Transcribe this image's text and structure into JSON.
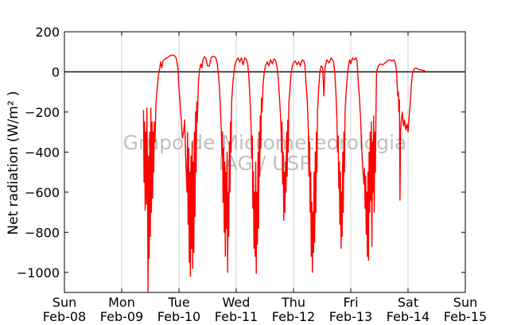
{
  "chart_data": {
    "type": "line",
    "ylabel": "Net radiation (W/m² )",
    "xlabel": "",
    "ylim": [
      -1100,
      200
    ],
    "xlim": [
      0,
      7
    ],
    "yticks": [
      200,
      0,
      -200,
      -400,
      -600,
      -800,
      -1000
    ],
    "ytick_labels": [
      "200",
      "0",
      "−200",
      "−400",
      "−600",
      "−800",
      "−1000"
    ],
    "xticks": [
      {
        "x": 0,
        "day": "Sun",
        "date": "Feb-08"
      },
      {
        "x": 1,
        "day": "Mon",
        "date": "Feb-09"
      },
      {
        "x": 2,
        "day": "Tue",
        "date": "Feb-10"
      },
      {
        "x": 3,
        "day": "Wed",
        "date": "Feb-11"
      },
      {
        "x": 4,
        "day": "Thu",
        "date": "Feb-12"
      },
      {
        "x": 5,
        "day": "Fri",
        "date": "Feb-13"
      },
      {
        "x": 6,
        "day": "Sat",
        "date": "Feb-14"
      },
      {
        "x": 7,
        "day": "Sun",
        "date": "Feb-15"
      }
    ],
    "grid": "vertical",
    "zero_line": true,
    "watermark": [
      "Grupo de Micrometeorologia",
      "IAG / USP"
    ],
    "series": [
      {
        "color": "#ff0000",
        "points": [
          [
            1.38,
            -190
          ],
          [
            1.39,
            -550
          ],
          [
            1.4,
            -250
          ],
          [
            1.41,
            -690
          ],
          [
            1.42,
            -300
          ],
          [
            1.43,
            -660
          ],
          [
            1.44,
            -180
          ],
          [
            1.45,
            -500
          ],
          [
            1.46,
            -1095
          ],
          [
            1.47,
            -420
          ],
          [
            1.48,
            -930
          ],
          [
            1.49,
            -300
          ],
          [
            1.5,
            -820
          ],
          [
            1.51,
            -180
          ],
          [
            1.52,
            -700
          ],
          [
            1.53,
            -250
          ],
          [
            1.54,
            -630
          ],
          [
            1.55,
            -300
          ],
          [
            1.56,
            -500
          ],
          [
            1.57,
            -250
          ],
          [
            1.58,
            -350
          ],
          [
            1.6,
            -150
          ],
          [
            1.62,
            -80
          ],
          [
            1.64,
            -20
          ],
          [
            1.66,
            10
          ],
          [
            1.68,
            50
          ],
          [
            1.7,
            20
          ],
          [
            1.72,
            55
          ],
          [
            1.76,
            65
          ],
          [
            1.8,
            72
          ],
          [
            1.84,
            80
          ],
          [
            1.88,
            84
          ],
          [
            1.92,
            82
          ],
          [
            1.95,
            70
          ],
          [
            1.98,
            20
          ],
          [
            2.0,
            -80
          ],
          [
            2.03,
            -200
          ],
          [
            2.06,
            -330
          ],
          [
            2.08,
            -300
          ],
          [
            2.1,
            -240
          ],
          [
            2.12,
            -450
          ],
          [
            2.14,
            -600
          ],
          [
            2.15,
            -300
          ],
          [
            2.16,
            -760
          ],
          [
            2.17,
            -380
          ],
          [
            2.18,
            -950
          ],
          [
            2.19,
            -500
          ],
          [
            2.2,
            -1020
          ],
          [
            2.21,
            -420
          ],
          [
            2.22,
            -880
          ],
          [
            2.23,
            -350
          ],
          [
            2.24,
            -980
          ],
          [
            2.25,
            -450
          ],
          [
            2.26,
            -900
          ],
          [
            2.27,
            -300
          ],
          [
            2.28,
            -720
          ],
          [
            2.29,
            -200
          ],
          [
            2.3,
            -500
          ],
          [
            2.31,
            -150
          ],
          [
            2.32,
            -250
          ],
          [
            2.34,
            -50
          ],
          [
            2.36,
            10
          ],
          [
            2.38,
            40
          ],
          [
            2.4,
            20
          ],
          [
            2.42,
            60
          ],
          [
            2.44,
            75
          ],
          [
            2.47,
            70
          ],
          [
            2.5,
            30
          ],
          [
            2.53,
            30
          ],
          [
            2.56,
            70
          ],
          [
            2.59,
            78
          ],
          [
            2.62,
            75
          ],
          [
            2.64,
            72
          ],
          [
            2.67,
            40
          ],
          [
            2.7,
            -50
          ],
          [
            2.72,
            -150
          ],
          [
            2.74,
            -300
          ],
          [
            2.75,
            -420
          ],
          [
            2.76,
            -300
          ],
          [
            2.77,
            -650
          ],
          [
            2.78,
            -380
          ],
          [
            2.79,
            -800
          ],
          [
            2.8,
            -450
          ],
          [
            2.81,
            -920
          ],
          [
            2.82,
            -500
          ],
          [
            2.83,
            -780
          ],
          [
            2.84,
            -400
          ],
          [
            2.85,
            -1000
          ],
          [
            2.86,
            -600
          ],
          [
            2.87,
            -820
          ],
          [
            2.88,
            -350
          ],
          [
            2.89,
            -600
          ],
          [
            2.9,
            -250
          ],
          [
            2.91,
            -400
          ],
          [
            2.92,
            -150
          ],
          [
            2.94,
            -60
          ],
          [
            2.96,
            0
          ],
          [
            2.98,
            40
          ],
          [
            3.0,
            55
          ],
          [
            3.03,
            70
          ],
          [
            3.06,
            50
          ],
          [
            3.09,
            70
          ],
          [
            3.12,
            35
          ],
          [
            3.15,
            70
          ],
          [
            3.18,
            60
          ],
          [
            3.2,
            40
          ],
          [
            3.22,
            -20
          ],
          [
            3.24,
            -130
          ],
          [
            3.26,
            -280
          ],
          [
            3.27,
            -430
          ],
          [
            3.28,
            -320
          ],
          [
            3.29,
            -680
          ],
          [
            3.3,
            -500
          ],
          [
            3.31,
            -880
          ],
          [
            3.32,
            -600
          ],
          [
            3.33,
            -920
          ],
          [
            3.34,
            -450
          ],
          [
            3.35,
            -1005
          ],
          [
            3.36,
            -600
          ],
          [
            3.37,
            -860
          ],
          [
            3.38,
            -400
          ],
          [
            3.39,
            -780
          ],
          [
            3.4,
            -300
          ],
          [
            3.41,
            -520
          ],
          [
            3.42,
            -220
          ],
          [
            3.43,
            -380
          ],
          [
            3.44,
            -130
          ],
          [
            3.45,
            -200
          ],
          [
            3.47,
            -60
          ],
          [
            3.49,
            0
          ],
          [
            3.51,
            30
          ],
          [
            3.54,
            50
          ],
          [
            3.57,
            30
          ],
          [
            3.6,
            60
          ],
          [
            3.63,
            40
          ],
          [
            3.66,
            65
          ],
          [
            3.69,
            55
          ],
          [
            3.72,
            10
          ],
          [
            3.74,
            -60
          ],
          [
            3.76,
            -150
          ],
          [
            3.78,
            -260
          ],
          [
            3.79,
            -400
          ],
          [
            3.8,
            -250
          ],
          [
            3.81,
            -560
          ],
          [
            3.82,
            -400
          ],
          [
            3.83,
            -740
          ],
          [
            3.84,
            -500
          ],
          [
            3.85,
            -700
          ],
          [
            3.86,
            -450
          ],
          [
            3.87,
            -600
          ],
          [
            3.88,
            -300
          ],
          [
            3.89,
            -520
          ],
          [
            3.9,
            -240
          ],
          [
            3.91,
            -400
          ],
          [
            3.92,
            -150
          ],
          [
            3.94,
            -80
          ],
          [
            3.96,
            0
          ],
          [
            3.98,
            30
          ],
          [
            4.0,
            45
          ],
          [
            4.03,
            55
          ],
          [
            4.06,
            35
          ],
          [
            4.09,
            50
          ],
          [
            4.12,
            30
          ],
          [
            4.15,
            60
          ],
          [
            4.18,
            55
          ],
          [
            4.2,
            30
          ],
          [
            4.22,
            -60
          ],
          [
            4.24,
            -140
          ],
          [
            4.26,
            -300
          ],
          [
            4.27,
            -520
          ],
          [
            4.28,
            -350
          ],
          [
            4.29,
            -700
          ],
          [
            4.3,
            -500
          ],
          [
            4.31,
            -920
          ],
          [
            4.32,
            -650
          ],
          [
            4.33,
            -1000
          ],
          [
            4.34,
            -700
          ],
          [
            4.35,
            -900
          ],
          [
            4.36,
            -500
          ],
          [
            4.37,
            -850
          ],
          [
            4.38,
            -400
          ],
          [
            4.39,
            -700
          ],
          [
            4.4,
            -300
          ],
          [
            4.41,
            -500
          ],
          [
            4.42,
            -200
          ],
          [
            4.44,
            -80
          ],
          [
            4.46,
            0
          ],
          [
            4.48,
            30
          ],
          [
            4.51,
            20
          ],
          [
            4.53,
            -120
          ],
          [
            4.55,
            20
          ],
          [
            4.58,
            60
          ],
          [
            4.62,
            45
          ],
          [
            4.66,
            70
          ],
          [
            4.7,
            50
          ],
          [
            4.72,
            0
          ],
          [
            4.74,
            -100
          ],
          [
            4.76,
            -250
          ],
          [
            4.77,
            -400
          ],
          [
            4.78,
            -320
          ],
          [
            4.79,
            -580
          ],
          [
            4.8,
            -450
          ],
          [
            4.81,
            -760
          ],
          [
            4.82,
            -500
          ],
          [
            4.83,
            -880
          ],
          [
            4.84,
            -600
          ],
          [
            4.85,
            -820
          ],
          [
            4.86,
            -400
          ],
          [
            4.87,
            -700
          ],
          [
            4.88,
            -300
          ],
          [
            4.89,
            -500
          ],
          [
            4.9,
            -200
          ],
          [
            4.92,
            -100
          ],
          [
            4.94,
            -20
          ],
          [
            4.96,
            30
          ],
          [
            4.98,
            60
          ],
          [
            5.0,
            40
          ],
          [
            5.03,
            70
          ],
          [
            5.06,
            60
          ],
          [
            5.09,
            70
          ],
          [
            5.11,
            55
          ],
          [
            5.13,
            -50
          ],
          [
            5.15,
            -120
          ],
          [
            5.17,
            -220
          ],
          [
            5.19,
            -380
          ],
          [
            5.21,
            -480
          ],
          [
            5.23,
            -560
          ],
          [
            5.24,
            -480
          ],
          [
            5.25,
            -680
          ],
          [
            5.26,
            -520
          ],
          [
            5.27,
            -810
          ],
          [
            5.28,
            -600
          ],
          [
            5.29,
            -920
          ],
          [
            5.3,
            -500
          ],
          [
            5.31,
            -940
          ],
          [
            5.32,
            -400
          ],
          [
            5.33,
            -700
          ],
          [
            5.34,
            -300
          ],
          [
            5.35,
            -640
          ],
          [
            5.36,
            -250
          ],
          [
            5.37,
            -870
          ],
          [
            5.38,
            -350
          ],
          [
            5.39,
            -600
          ],
          [
            5.4,
            -220
          ],
          [
            5.41,
            -700
          ],
          [
            5.42,
            -300
          ],
          [
            5.43,
            -500
          ],
          [
            5.44,
            -200
          ],
          [
            5.45,
            0
          ],
          [
            5.48,
            30
          ],
          [
            5.52,
            40
          ],
          [
            5.56,
            35
          ],
          [
            5.6,
            45
          ],
          [
            5.64,
            55
          ],
          [
            5.68,
            60
          ],
          [
            5.72,
            55
          ],
          [
            5.76,
            60
          ],
          [
            5.78,
            40
          ],
          [
            5.8,
            0
          ],
          [
            5.81,
            -60
          ],
          [
            5.82,
            -120
          ],
          [
            5.83,
            -100
          ],
          [
            5.84,
            -200
          ],
          [
            5.85,
            -140
          ],
          [
            5.86,
            -640
          ],
          [
            5.87,
            -300
          ],
          [
            5.88,
            -250
          ],
          [
            5.9,
            -200
          ],
          [
            5.92,
            -270
          ],
          [
            5.94,
            -240
          ],
          [
            5.96,
            -290
          ],
          [
            5.98,
            -260
          ],
          [
            6.0,
            -300
          ],
          [
            6.02,
            -220
          ],
          [
            6.04,
            -150
          ],
          [
            6.06,
            -60
          ],
          [
            6.08,
            0
          ],
          [
            6.11,
            15
          ],
          [
            6.14,
            20
          ],
          [
            6.18,
            12
          ],
          [
            6.22,
            10
          ],
          [
            6.26,
            8
          ],
          [
            6.3,
            6
          ]
        ]
      }
    ]
  }
}
